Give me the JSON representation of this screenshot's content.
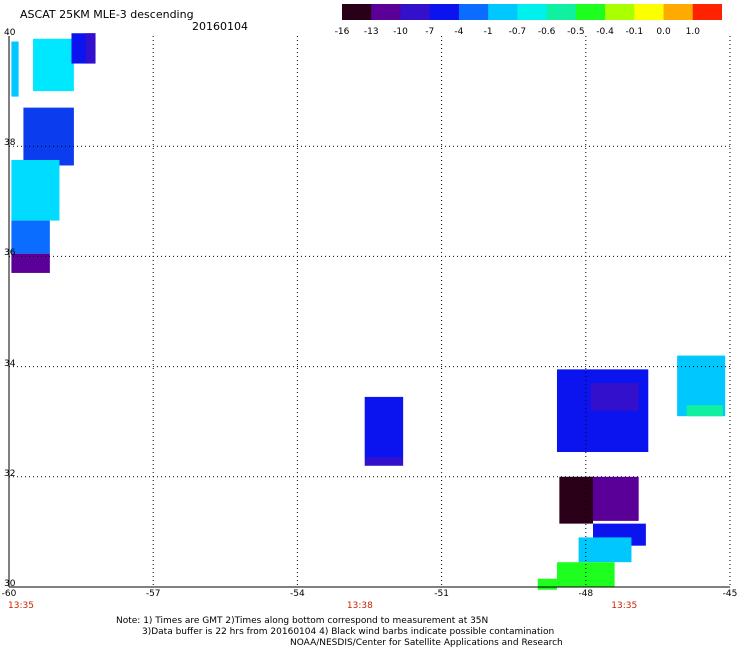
{
  "header": {
    "title": "ASCAT 25KM MLE-3 descending",
    "date": "20160104"
  },
  "colorbar": {
    "labels": [
      "-16",
      "-13",
      "-10",
      "-7",
      "-4",
      "-1",
      "-0.7",
      "-0.6",
      "-0.5",
      "-0.4",
      "-0.1",
      "0.0",
      "1.0"
    ],
    "colors": [
      "#2a0018",
      "#5a0099",
      "#3311cc",
      "#0b14ee",
      "#0a6dff",
      "#00c8ff",
      "#00f0ee",
      "#10f0a0",
      "#1fff1f",
      "#aaff00",
      "#fbff00",
      "#ffaa00",
      "#ff2200"
    ]
  },
  "axes": {
    "lat_labels": [
      "40",
      "38",
      "36",
      "34",
      "32",
      "30"
    ],
    "lon_labels": [
      "-60",
      "-57",
      "-54",
      "-51",
      "-48",
      "-45"
    ],
    "time_labels": [
      "13:35",
      "13:38",
      "13:35"
    ]
  },
  "notes": {
    "line1": "Note: 1) Times are GMT 2)Times along bottom correspond to measurement at 35N",
    "line2": "3)Data buffer is 22 hrs from 20160104 4) Black wind barbs indicate possible contamination",
    "line3": "NOAA/NESDIS/Center for Satellite Applications and Research"
  },
  "map": {
    "lon_range": [
      -60,
      -45
    ],
    "lat_range": [
      30,
      40
    ],
    "gridlines": "dotted",
    "swaths": [
      {
        "name": "swath-nw",
        "cells": [
          {
            "lon": -59.95,
            "lat": 38.9,
            "w": 0.15,
            "h": 1.0,
            "c": "#00c8ff"
          },
          {
            "lon": -59.5,
            "lat": 39.0,
            "w": 0.85,
            "h": 0.95,
            "c": "#00e8ff"
          },
          {
            "lon": -58.7,
            "lat": 39.5,
            "w": 0.5,
            "h": 0.55,
            "c": "#0b14ee"
          },
          {
            "lon": -58.4,
            "lat": 39.5,
            "w": 0.2,
            "h": 0.55,
            "c": "#3311cc"
          },
          {
            "lon": -59.7,
            "lat": 37.65,
            "w": 1.05,
            "h": 1.05,
            "c": "#0b3cee"
          },
          {
            "lon": -59.95,
            "lat": 36.65,
            "w": 1.0,
            "h": 1.1,
            "c": "#00dcff"
          },
          {
            "lon": -59.95,
            "lat": 36.05,
            "w": 0.8,
            "h": 0.6,
            "c": "#0a6dff"
          },
          {
            "lon": -59.95,
            "lat": 35.7,
            "w": 0.8,
            "h": 0.35,
            "c": "#5a0099"
          }
        ]
      },
      {
        "name": "swath-center",
        "cells": [
          {
            "lon": -52.6,
            "lat": 32.35,
            "w": 0.8,
            "h": 1.1,
            "c": "#0b14ee"
          },
          {
            "lon": -52.6,
            "lat": 32.2,
            "w": 0.8,
            "h": 0.15,
            "c": "#3311cc"
          }
        ]
      },
      {
        "name": "swath-se",
        "cells": [
          {
            "lon": -46.1,
            "lat": 33.1,
            "w": 1.0,
            "h": 1.1,
            "c": "#00c8ff"
          },
          {
            "lon": -45.9,
            "lat": 33.1,
            "w": 0.75,
            "h": 0.2,
            "c": "#10f0a0"
          },
          {
            "lon": -48.6,
            "lat": 32.45,
            "w": 1.9,
            "h": 1.5,
            "c": "#0b14ee"
          },
          {
            "lon": -47.9,
            "lat": 33.2,
            "w": 1.0,
            "h": 0.5,
            "c": "#3311cc"
          },
          {
            "lon": -47.9,
            "lat": 31.2,
            "w": 1.0,
            "h": 0.8,
            "c": "#5a0099"
          },
          {
            "lon": -48.55,
            "lat": 31.15,
            "w": 0.7,
            "h": 0.85,
            "c": "#2a0018"
          },
          {
            "lon": -47.85,
            "lat": 30.75,
            "w": 1.1,
            "h": 0.4,
            "c": "#0b14ee"
          },
          {
            "lon": -48.15,
            "lat": 30.45,
            "w": 1.1,
            "h": 0.45,
            "c": "#00c8ff"
          },
          {
            "lon": -48.6,
            "lat": 30.0,
            "w": 1.2,
            "h": 0.45,
            "c": "#1fff1f"
          },
          {
            "lon": -49.0,
            "lat": 29.95,
            "w": 0.4,
            "h": 0.2,
            "c": "#1fff1f"
          }
        ]
      }
    ]
  }
}
